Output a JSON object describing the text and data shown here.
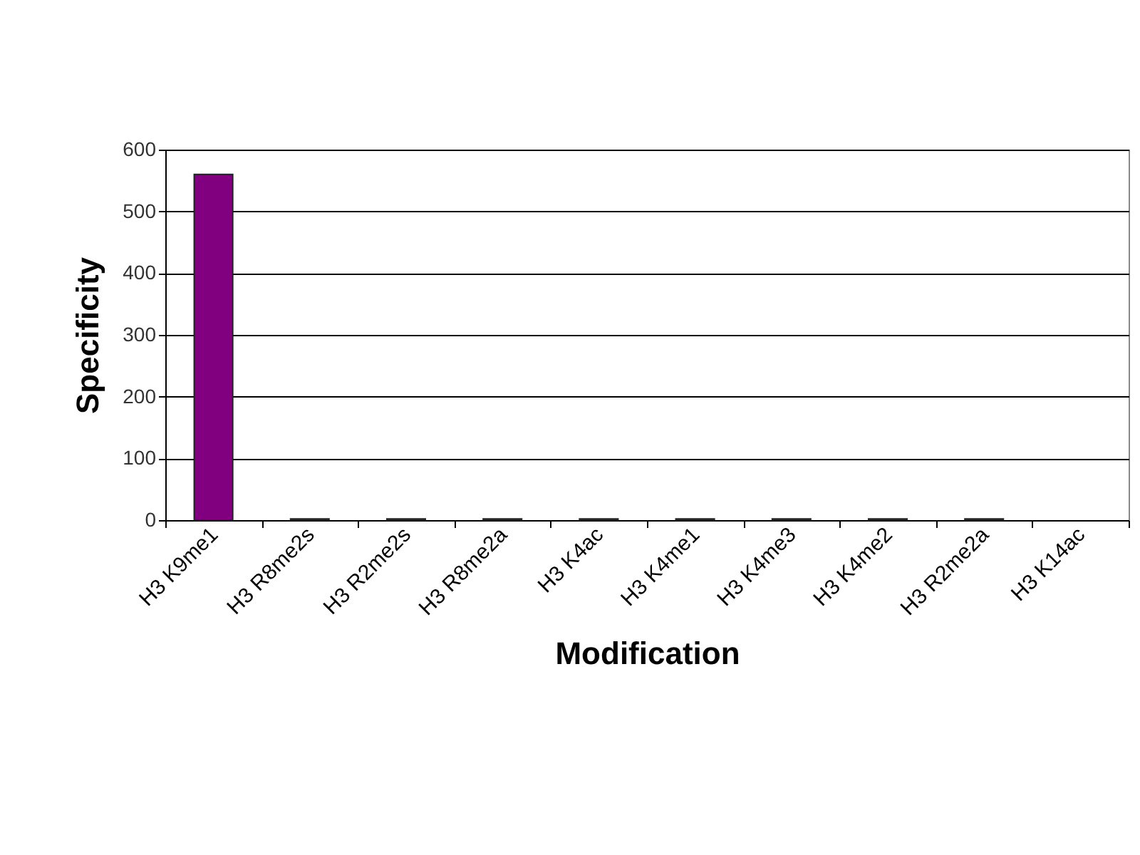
{
  "chart_data": {
    "type": "bar",
    "xlabel": "Modification",
    "ylabel": "Specificity",
    "categories": [
      "H3 K9me1",
      "H3 R8me2s",
      "H3 R2me2s",
      "H3 R8me2a",
      "H3 K4ac",
      "H3 K4me1",
      "H3 K4me3",
      "H3 K4me2",
      "H3 R2me2a",
      "H3 K14ac"
    ],
    "values": [
      560,
      2,
      2,
      2,
      2,
      2,
      2,
      2,
      2,
      null
    ],
    "color": "#800080",
    "ylim": [
      0,
      600
    ],
    "yticks": [
      0,
      100,
      200,
      300,
      400,
      500,
      600
    ],
    "grid": "y"
  }
}
